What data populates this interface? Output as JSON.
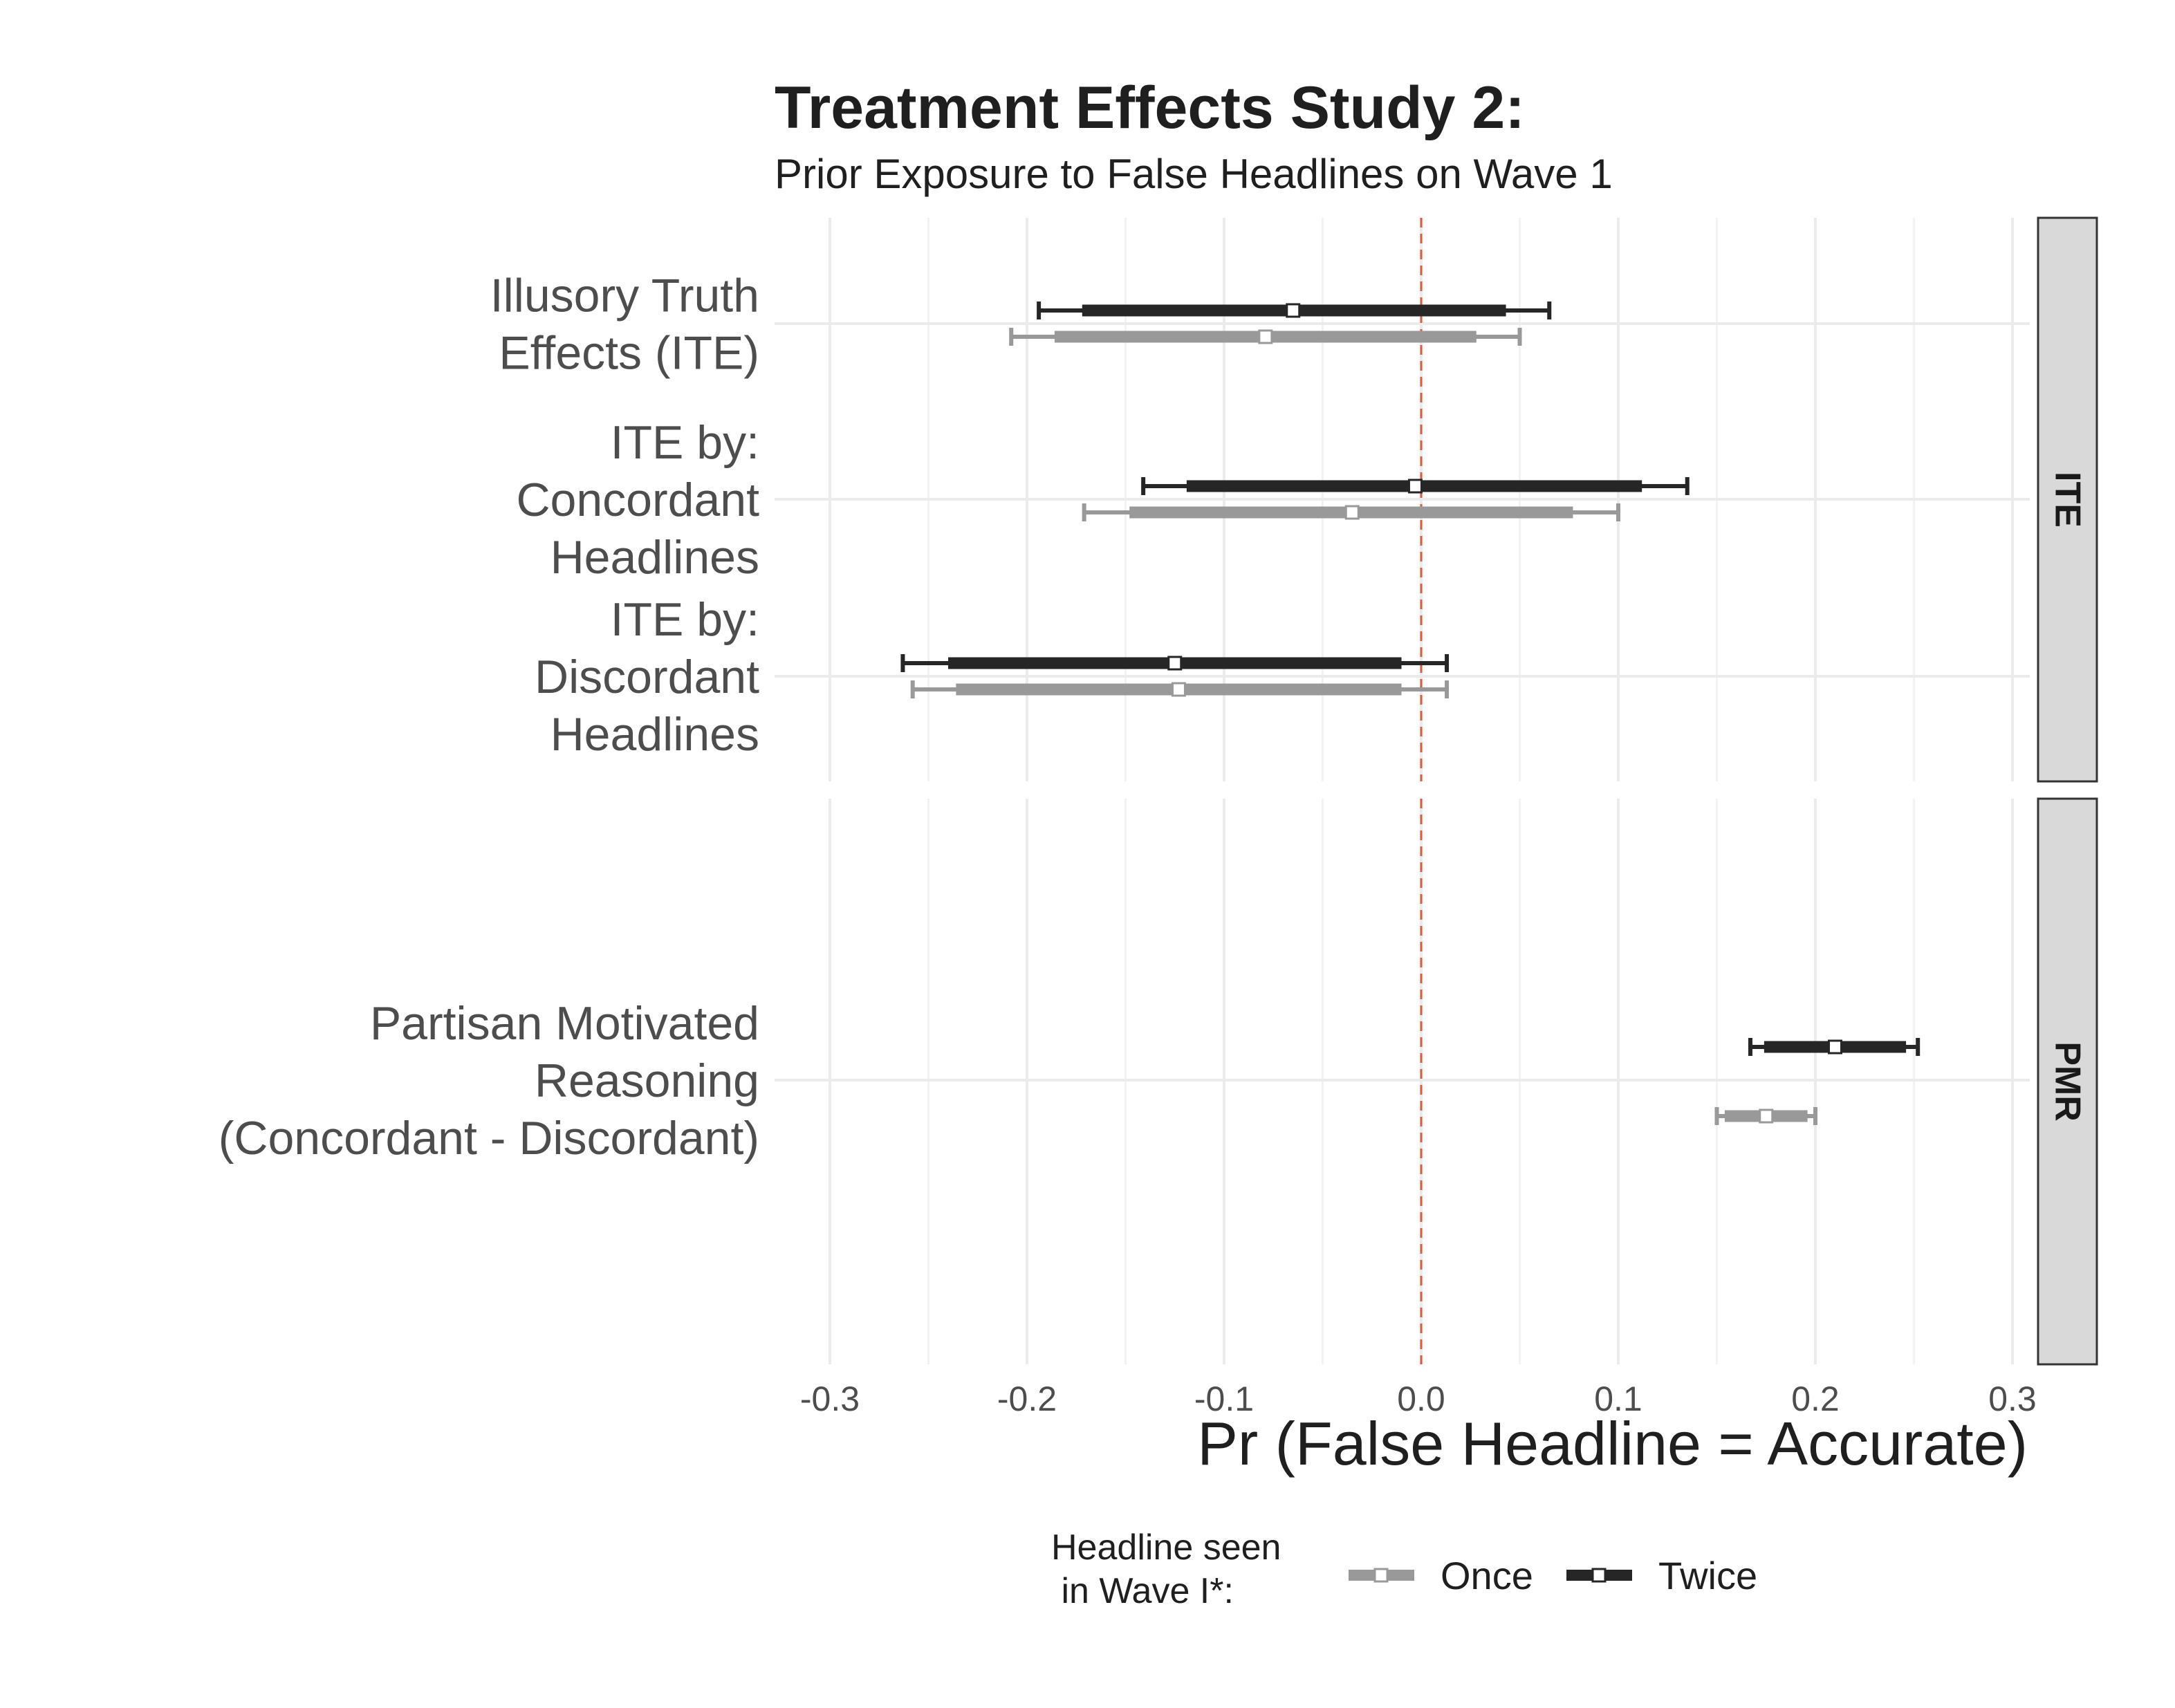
{
  "chart_data": {
    "type": "errorbar",
    "title": "Treatment Effects Study 2:",
    "subtitle": "Prior Exposure to False Headlines on Wave 1",
    "xlabel": "Pr (False Headline = Accurate)",
    "xlim": [
      -0.33,
      0.31
    ],
    "x_ticks": [
      "-0.3",
      "-0.2",
      "-0.1",
      "0.0",
      "0.1",
      "0.2",
      "0.3"
    ],
    "x_tick_values": [
      -0.3,
      -0.2,
      -0.1,
      0.0,
      0.1,
      0.2,
      0.3
    ],
    "reference_line": 0.0,
    "reference_color": "#e8593a",
    "grid": true,
    "legend": {
      "title_lines": [
        "Headline seen",
        " in Wave I*:"
      ],
      "placement": "bottom",
      "items": [
        {
          "label": "Once",
          "color": "#999999"
        },
        {
          "label": "Twice",
          "color": "#262626"
        }
      ]
    },
    "panels": [
      {
        "strip": "ITE",
        "rows": [
          {
            "label_lines": [
              "Illusory Truth",
              "Effects (ITE)"
            ],
            "series": [
              {
                "name": "Twice",
                "estimate": -0.065,
                "ci95": [
                  -0.194,
                  0.065
                ],
                "ci90": [
                  -0.172,
                  0.043
                ]
              },
              {
                "name": "Once",
                "estimate": -0.079,
                "ci95": [
                  -0.208,
                  0.05
                ],
                "ci90": [
                  -0.186,
                  0.028
                ]
              }
            ]
          },
          {
            "label_lines": [
              "ITE by:",
              "Concordant",
              "Headlines"
            ],
            "series": [
              {
                "name": "Twice",
                "estimate": -0.003,
                "ci95": [
                  -0.141,
                  0.135
                ],
                "ci90": [
                  -0.119,
                  0.112
                ]
              },
              {
                "name": "Once",
                "estimate": -0.035,
                "ci95": [
                  -0.171,
                  0.1
                ],
                "ci90": [
                  -0.148,
                  0.077
                ]
              }
            ]
          },
          {
            "label_lines": [
              "ITE by:",
              "Discordant",
              "Headlines"
            ],
            "series": [
              {
                "name": "Twice",
                "estimate": -0.125,
                "ci95": [
                  -0.263,
                  0.013
                ],
                "ci90": [
                  -0.24,
                  -0.01
                ]
              },
              {
                "name": "Once",
                "estimate": -0.123,
                "ci95": [
                  -0.258,
                  0.013
                ],
                "ci90": [
                  -0.236,
                  -0.01
                ]
              }
            ]
          }
        ]
      },
      {
        "strip": "PMR",
        "rows": [
          {
            "label_lines": [
              "Partisan Motivated",
              "Reasoning",
              "(Concordant - Discordant)"
            ],
            "series": [
              {
                "name": "Twice",
                "estimate": 0.21,
                "ci95": [
                  0.167,
                  0.252
                ],
                "ci90": [
                  0.174,
                  0.246
                ]
              },
              {
                "name": "Once",
                "estimate": 0.175,
                "ci95": [
                  0.15,
                  0.2
                ],
                "ci90": [
                  0.154,
                  0.196
                ]
              }
            ]
          }
        ]
      }
    ]
  }
}
